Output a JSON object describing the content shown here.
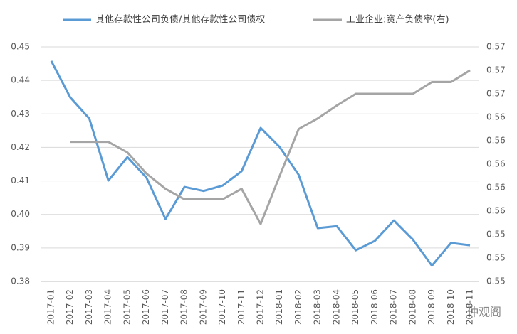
{
  "chart_data": {
    "type": "line",
    "categories": [
      "2017-01",
      "2017-02",
      "2017-03",
      "2017-04",
      "2017-05",
      "2017-06",
      "2017-07",
      "2017-08",
      "2017-09",
      "2017-10",
      "2017-11",
      "2017-12",
      "2018-01",
      "2018-02",
      "2018-03",
      "2018-04",
      "2018-05",
      "2018-06",
      "2018-07",
      "2018-08",
      "2018-09",
      "2018-10",
      "2018-11"
    ],
    "series": [
      {
        "name": "其他存款性公司负债/其他存款性公司债权",
        "color": "#5b9bd5",
        "values": [
          0.4458,
          0.4349,
          0.4286,
          0.4101,
          0.4171,
          0.411,
          0.3986,
          0.4082,
          0.407,
          0.4086,
          0.4129,
          0.4258,
          0.4201,
          0.4118,
          0.3959,
          0.3965,
          0.3893,
          0.3921,
          0.3982,
          0.3925,
          0.3847,
          0.3915,
          0.3908
        ]
      },
      {
        "name": "工业企业:资产负债率(右)",
        "color": "#a5a5a5",
        "axis": "y2",
        "values": [
          null,
          0.5619,
          0.5619,
          0.5619,
          0.561,
          0.5592,
          0.5579,
          0.557,
          0.557,
          0.557,
          0.5579,
          0.5549,
          0.559,
          0.563,
          0.5639,
          0.565,
          0.566,
          0.566,
          0.566,
          0.566,
          0.567,
          0.567,
          0.568
        ]
      }
    ],
    "ylim": [
      0.38,
      0.45
    ],
    "yticks": [
      0.38,
      0.39,
      {
        "value": 0.4,
        "label": "0.40"
      },
      0.41,
      0.42,
      0.43,
      0.44,
      0.45
    ],
    "y2lim": [
      0.55,
      0.57
    ],
    "y2ticks": [
      {
        "value": 0.55,
        "label": "0.55"
      },
      {
        "value": 0.552,
        "label": "0.55"
      },
      {
        "value": 0.554,
        "label": "0.55"
      },
      {
        "value": 0.556,
        "label": "0.56"
      },
      {
        "value": 0.558,
        "label": "0.56"
      },
      {
        "value": 0.56,
        "label": "0.56"
      },
      {
        "value": 0.562,
        "label": "0.56"
      },
      {
        "value": 0.564,
        "label": "0.56"
      },
      {
        "value": 0.566,
        "label": "0.57"
      },
      {
        "value": 0.568,
        "label": "0.57"
      },
      {
        "value": 0.57,
        "label": "0.57"
      }
    ],
    "grid": true,
    "legend": "top",
    "watermark": "仲观阁"
  }
}
